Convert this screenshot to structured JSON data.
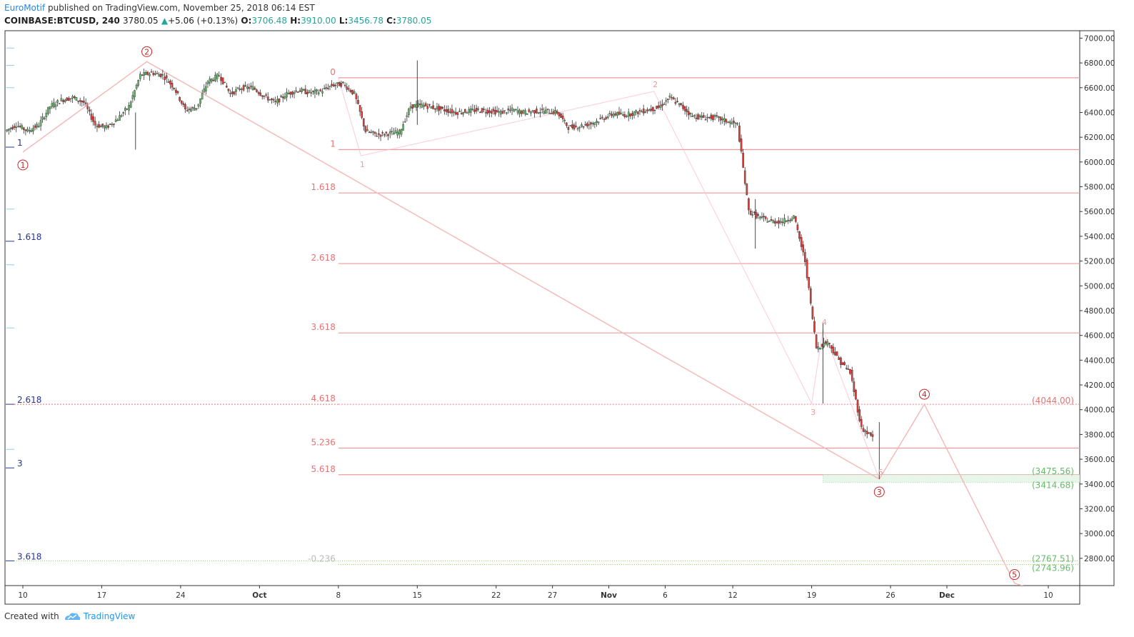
{
  "header": {
    "author": "EuroMotif",
    "published": " published on TradingView.com, November 25, 2018 06:14 EST",
    "symbol": "COINBASE:BTCUSD, 240",
    "last": "3780.05",
    "change": "+5.06 (+0.13%)",
    "o_label": "O:",
    "o": "3706.48",
    "h_label": "H:",
    "h": "3910.00",
    "l_label": "L:",
    "l": "3456.78",
    "c_label": "C:",
    "c": "3780.05"
  },
  "footer": {
    "created_with": "Created with",
    "brand": "TradingView"
  },
  "chart_data": {
    "type": "candlestick",
    "y_axis": {
      "ticks": [
        "7000.00",
        "6800.00",
        "6600.00",
        "6400.00",
        "6200.00",
        "6000.00",
        "5800.00",
        "5600.00",
        "5400.00",
        "5200.00",
        "5000.00",
        "4800.00",
        "4600.00",
        "4400.00",
        "4200.00",
        "4000.00",
        "3800.00",
        "3600.00",
        "3400.00",
        "3200.00",
        "3000.00",
        "2800.00"
      ],
      "range": [
        2580,
        7060
      ]
    },
    "x_axis": {
      "ticks": [
        {
          "label": "10",
          "date": "2018-09-10"
        },
        {
          "label": "17",
          "date": "2018-09-17"
        },
        {
          "label": "24",
          "date": "2018-09-24"
        },
        {
          "label": "Oct",
          "date": "2018-10-01"
        },
        {
          "label": "8",
          "date": "2018-10-08"
        },
        {
          "label": "15",
          "date": "2018-10-15"
        },
        {
          "label": "22",
          "date": "2018-10-22"
        },
        {
          "label": "27",
          "date": "2018-10-27"
        },
        {
          "label": "Nov",
          "date": "2018-11-01"
        },
        {
          "label": "6",
          "date": "2018-11-06"
        },
        {
          "label": "12",
          "date": "2018-11-12"
        },
        {
          "label": "19",
          "date": "2018-11-19"
        },
        {
          "label": "26",
          "date": "2018-11-26"
        },
        {
          "label": "Dec",
          "date": "2018-12-01"
        },
        {
          "label": "10",
          "date": "2018-12-10"
        }
      ],
      "bold": [
        "Oct",
        "Nov",
        "Dec"
      ]
    },
    "price_path": [
      [
        "2018-09-09",
        6250
      ],
      [
        "2018-09-10",
        6300
      ],
      [
        "2018-09-11",
        6250
      ],
      [
        "2018-09-12",
        6300
      ],
      [
        "2018-09-13",
        6450
      ],
      [
        "2018-09-14",
        6500
      ],
      [
        "2018-09-15",
        6520
      ],
      [
        "2018-09-16",
        6480
      ],
      [
        "2018-09-17",
        6300
      ],
      [
        "2018-09-18",
        6280
      ],
      [
        "2018-09-19",
        6350
      ],
      [
        "2018-09-20",
        6450
      ],
      [
        "2018-09-21",
        6700
      ],
      [
        "2018-09-22",
        6720
      ],
      [
        "2018-09-23",
        6700
      ],
      [
        "2018-09-24",
        6600
      ],
      [
        "2018-09-25",
        6420
      ],
      [
        "2018-09-26",
        6440
      ],
      [
        "2018-09-27",
        6650
      ],
      [
        "2018-09-28",
        6700
      ],
      [
        "2018-09-29",
        6550
      ],
      [
        "2018-09-30",
        6600
      ],
      [
        "2018-10-01",
        6600
      ],
      [
        "2018-10-02",
        6530
      ],
      [
        "2018-10-03",
        6480
      ],
      [
        "2018-10-04",
        6550
      ],
      [
        "2018-10-05",
        6580
      ],
      [
        "2018-10-06",
        6560
      ],
      [
        "2018-10-07",
        6570
      ],
      [
        "2018-10-08",
        6620
      ],
      [
        "2018-10-09",
        6630
      ],
      [
        "2018-10-10",
        6550
      ],
      [
        "2018-10-11",
        6250
      ],
      [
        "2018-10-12",
        6220
      ],
      [
        "2018-10-13",
        6230
      ],
      [
        "2018-10-14",
        6240
      ],
      [
        "2018-10-15",
        6450
      ],
      [
        "2018-10-16",
        6460
      ],
      [
        "2018-10-17",
        6440
      ],
      [
        "2018-10-18",
        6420
      ],
      [
        "2018-10-19",
        6400
      ],
      [
        "2018-10-20",
        6410
      ],
      [
        "2018-10-21",
        6420
      ],
      [
        "2018-10-22",
        6410
      ],
      [
        "2018-10-23",
        6400
      ],
      [
        "2018-10-24",
        6420
      ],
      [
        "2018-10-25",
        6400
      ],
      [
        "2018-10-26",
        6410
      ],
      [
        "2018-10-27",
        6410
      ],
      [
        "2018-10-28",
        6400
      ],
      [
        "2018-10-29",
        6280
      ],
      [
        "2018-10-30",
        6290
      ],
      [
        "2018-10-31",
        6310
      ],
      [
        "2018-11-01",
        6350
      ],
      [
        "2018-11-02",
        6390
      ],
      [
        "2018-11-03",
        6380
      ],
      [
        "2018-11-04",
        6400
      ],
      [
        "2018-11-05",
        6420
      ],
      [
        "2018-11-06",
        6440
      ],
      [
        "2018-11-07",
        6520
      ],
      [
        "2018-11-08",
        6450
      ],
      [
        "2018-11-09",
        6370
      ],
      [
        "2018-11-10",
        6360
      ],
      [
        "2018-11-11",
        6360
      ],
      [
        "2018-11-12",
        6330
      ],
      [
        "2018-11-13",
        6300
      ],
      [
        "2018-11-14",
        5600
      ],
      [
        "2018-11-15",
        5550
      ],
      [
        "2018-11-16",
        5520
      ],
      [
        "2018-11-17",
        5520
      ],
      [
        "2018-11-18",
        5560
      ],
      [
        "2018-11-19",
        5200
      ],
      [
        "2018-11-20",
        4500
      ],
      [
        "2018-11-21",
        4550
      ],
      [
        "2018-11-22",
        4400
      ],
      [
        "2018-11-23",
        4300
      ],
      [
        "2018-11-24",
        3850
      ],
      [
        "2018-11-25",
        3780
      ]
    ],
    "fib_right": {
      "start_date": "2018-10-08",
      "levels": [
        {
          "label": "0",
          "price": 6680
        },
        {
          "label": "1",
          "price": 6100
        },
        {
          "label": "1.618",
          "price": 5750
        },
        {
          "label": "2.618",
          "price": 5180
        },
        {
          "label": "3.618",
          "price": 4620
        },
        {
          "label": "4.618",
          "price": 4044
        },
        {
          "label": "5.236",
          "price": 3690
        },
        {
          "label": "5.618",
          "price": 3475
        },
        {
          "label": "-0.236",
          "price": 2750
        }
      ]
    },
    "fib_left": {
      "levels": [
        {
          "label": "1",
          "price": 6120
        },
        {
          "label": "1.618",
          "price": 5360
        },
        {
          "label": "2.618",
          "price": 4044
        },
        {
          "label": "3",
          "price": 3530
        },
        {
          "label": "3.618",
          "price": 2780
        }
      ]
    },
    "price_labels": [
      {
        "text": "(4044.00)",
        "price": 4044,
        "color": "#e57373"
      },
      {
        "text": "(3475.56)",
        "price": 3475,
        "color": "#66bb6a"
      },
      {
        "text": "(3414.68)",
        "price": 3414,
        "color": "#66bb6a"
      },
      {
        "text": "(2767.51)",
        "price": 2767,
        "color": "#66bb6a"
      },
      {
        "text": "(2743.96)",
        "price": 2744,
        "color": "#66bb6a"
      }
    ],
    "elliott_major": [
      {
        "label": "1",
        "date": "2018-09-10",
        "price": 6080,
        "text_price": 6080
      },
      {
        "label": "2",
        "date": "2018-09-21",
        "price": 6810,
        "text_price": 6810
      },
      {
        "label": "3",
        "date": "2018-11-25",
        "price": 3440,
        "text_price": 3440
      },
      {
        "label": "4",
        "date": "2018-11-29",
        "price": 4044,
        "text_price": 4044
      },
      {
        "label": "5",
        "date": "2018-12-07",
        "price": 2600,
        "text_price": 2600
      }
    ],
    "elliott_minor": [
      {
        "label": "1",
        "date": "2018-10-10",
        "price": 6050
      },
      {
        "label": "2",
        "date": "2018-11-05",
        "price": 6570
      },
      {
        "label": "3",
        "date": "2018-11-19",
        "price": 4050
      },
      {
        "label": "4",
        "date": "2018-11-20",
        "price": 4650
      },
      {
        "label": "5",
        "date": "2018-11-25",
        "price": 3440
      }
    ]
  }
}
